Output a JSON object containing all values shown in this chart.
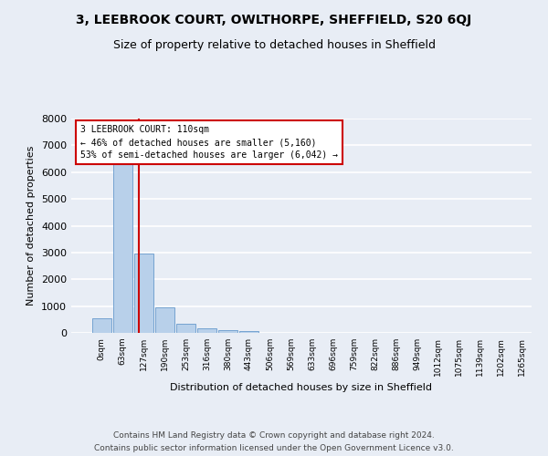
{
  "title_line1": "3, LEEBROOK COURT, OWLTHORPE, SHEFFIELD, S20 6QJ",
  "title_line2": "Size of property relative to detached houses in Sheffield",
  "xlabel": "Distribution of detached houses by size in Sheffield",
  "ylabel": "Number of detached properties",
  "footer_line1": "Contains HM Land Registry data © Crown copyright and database right 2024.",
  "footer_line2": "Contains public sector information licensed under the Open Government Licence v3.0.",
  "bin_labels": [
    "0sqm",
    "63sqm",
    "127sqm",
    "190sqm",
    "253sqm",
    "316sqm",
    "380sqm",
    "443sqm",
    "506sqm",
    "569sqm",
    "633sqm",
    "696sqm",
    "759sqm",
    "822sqm",
    "886sqm",
    "949sqm",
    "1012sqm",
    "1075sqm",
    "1139sqm",
    "1202sqm",
    "1265sqm"
  ],
  "bar_heights": [
    550,
    6380,
    2960,
    960,
    340,
    155,
    95,
    65,
    0,
    0,
    0,
    0,
    0,
    0,
    0,
    0,
    0,
    0,
    0,
    0
  ],
  "bar_color": "#b8d0ea",
  "bar_edge_color": "#6699cc",
  "vline_x": 1.78,
  "vline_color": "#cc0000",
  "annotation_title": "3 LEEBROOK COURT: 110sqm",
  "annotation_line1": "← 46% of detached houses are smaller (5,160)",
  "annotation_line2": "53% of semi-detached houses are larger (6,042) →",
  "annotation_box_color": "#cc0000",
  "ylim": [
    0,
    8000
  ],
  "yticks": [
    0,
    1000,
    2000,
    3000,
    4000,
    5000,
    6000,
    7000,
    8000
  ],
  "bg_color": "#e8edf5",
  "plot_bg_color": "#e8edf5",
  "grid_color": "#ffffff",
  "title_fontsize": 10,
  "subtitle_fontsize": 9
}
